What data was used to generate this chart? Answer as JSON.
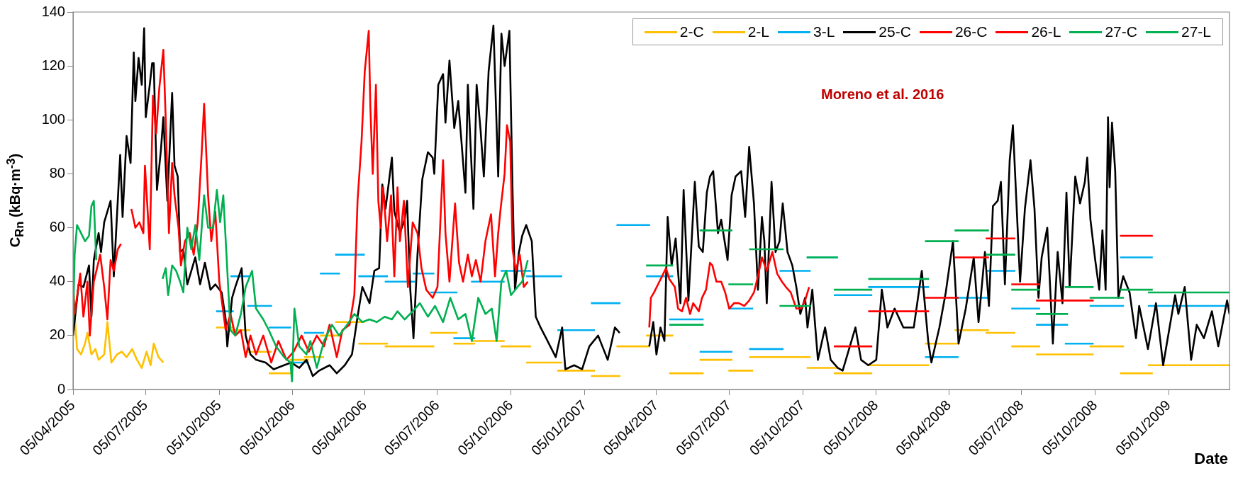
{
  "chart_data": {
    "type": "line",
    "xlabel": "Date",
    "ylabel": "C$_{Rn}$ (kBq·m$^{-3}$)",
    "annotations": [
      "Moreno et al. 2016"
    ],
    "legend": "top right",
    "xlim": [
      "2005-04-05",
      "2009-03-22"
    ],
    "xticks": [
      {
        "value": "2005-04-05",
        "label": "05/04/2005"
      },
      {
        "value": "2005-07-05",
        "label": "05/07/2005"
      },
      {
        "value": "2005-10-05",
        "label": "05/10/2005"
      },
      {
        "value": "2006-01-05",
        "label": "05/01/2006"
      },
      {
        "value": "2006-04-05",
        "label": "05/04/2006"
      },
      {
        "value": "2006-07-05",
        "label": "05/07/2006"
      },
      {
        "value": "2006-10-05",
        "label": "05/10/2006"
      },
      {
        "value": "2007-01-05",
        "label": "05/01/2007"
      },
      {
        "value": "2007-04-05",
        "label": "05/04/2007"
      },
      {
        "value": "2007-07-05",
        "label": "05/07/2007"
      },
      {
        "value": "2007-10-05",
        "label": "05/10/2007"
      },
      {
        "value": "2008-01-05",
        "label": "05/01/2008"
      },
      {
        "value": "2008-04-05",
        "label": "05/04/2008"
      },
      {
        "value": "2008-07-05",
        "label": "05/07/2008"
      },
      {
        "value": "2008-10-05",
        "label": "05/10/2008"
      },
      {
        "value": "2009-01-05",
        "label": "05/01/2009"
      }
    ],
    "ylim": [
      0,
      140
    ],
    "yticks": [
      0,
      20,
      40,
      60,
      80,
      100,
      120,
      140
    ],
    "series": [
      {
        "name": "2-C",
        "color": "#ffc000",
        "x": [
          "2005-04-05",
          "2005-04-07",
          "2005-04-10",
          "2005-04-15",
          "2005-04-20",
          "2005-04-23",
          "2005-04-28",
          "2005-05-03",
          "2005-05-07",
          "2005-05-14",
          "2005-05-18",
          "2005-05-23",
          "2005-05-30",
          "2005-06-05",
          "2005-06-11",
          "2005-06-18",
          "2005-06-24",
          "2005-06-30",
          "2005-07-06",
          "2005-07-11",
          "2005-07-15",
          "2005-07-21",
          "2005-07-27"
        ],
        "values": [
          18,
          28,
          15,
          13,
          17,
          21,
          13,
          15,
          11,
          13,
          25,
          10,
          13,
          14,
          12,
          15,
          11,
          8,
          14,
          9,
          17,
          12,
          10
        ]
      },
      {
        "name": "2-L",
        "color": "#ffc000",
        "x": [
          "2005-10-01",
          "2005-10-23",
          null,
          "2005-10-19",
          "2005-11-13",
          null,
          "2005-11-09",
          "2005-12-10",
          null,
          "2005-12-06",
          "2006-01-03",
          null,
          "2006-01-01",
          "2006-01-25",
          null,
          "2006-01-19",
          "2006-02-13",
          null,
          "2006-02-08",
          "2006-03-05",
          null,
          "2006-02-27",
          "2006-04-05",
          null,
          "2006-03-28",
          "2006-05-04",
          null,
          "2006-04-30",
          "2006-06-07",
          null,
          "2006-06-04",
          "2006-07-01",
          null,
          "2006-06-26",
          "2006-07-30",
          null,
          "2006-07-25",
          "2006-08-21",
          null,
          "2006-08-16",
          "2006-09-27",
          null,
          "2006-09-22",
          "2006-10-30",
          null,
          "2006-10-24",
          "2006-12-08",
          null,
          "2006-12-02",
          "2007-01-18",
          null,
          "2007-01-13",
          "2007-02-19",
          null,
          "2007-02-14",
          "2007-03-28",
          null,
          "2007-03-23",
          "2007-04-26",
          null,
          "2007-04-21",
          "2007-06-03",
          null,
          "2007-05-29",
          "2007-07-09",
          null,
          "2007-07-04",
          "2007-08-04",
          null,
          "2007-07-30",
          "2007-09-11",
          null,
          "2007-09-06",
          "2007-10-15",
          null,
          "2007-10-10",
          "2007-11-18",
          null,
          "2007-11-13",
          "2007-12-31",
          null,
          "2007-12-26",
          "2008-03-11",
          null,
          "2008-03-06",
          "2008-04-17",
          null,
          "2008-04-12",
          "2008-05-25",
          null,
          "2008-05-21",
          "2008-06-27",
          null,
          "2008-06-22",
          "2008-07-28",
          null,
          "2008-07-23",
          "2008-10-03",
          null,
          "2008-09-28",
          "2008-11-10",
          null,
          "2008-11-05",
          "2008-12-16",
          null,
          "2008-12-10",
          "2009-03-22"
        ],
        "values": [
          23,
          23,
          null,
          22,
          22,
          null,
          14,
          14,
          null,
          6,
          6,
          null,
          11,
          11,
          null,
          12,
          12,
          null,
          20,
          20,
          null,
          25,
          25,
          null,
          17,
          17,
          null,
          16,
          16,
          null,
          16,
          16,
          null,
          21,
          21,
          null,
          17,
          17,
          null,
          18,
          18,
          null,
          16,
          16,
          null,
          10,
          10,
          null,
          7,
          7,
          null,
          5,
          5,
          null,
          16,
          16,
          null,
          20,
          20,
          null,
          6,
          6,
          null,
          11,
          11,
          null,
          7,
          7,
          null,
          12,
          12,
          null,
          12,
          12,
          null,
          8,
          8,
          null,
          6,
          6,
          null,
          9,
          9,
          null,
          17,
          17,
          null,
          22,
          22,
          null,
          21,
          21,
          null,
          16,
          16,
          null,
          13,
          13,
          null,
          16,
          16,
          null,
          6,
          6,
          null,
          9,
          9
        ]
      },
      {
        "name": "3-L",
        "color": "#00b0f0",
        "x": [
          "2005-10-01",
          "2005-10-23",
          null,
          "2005-10-19",
          "2005-11-13",
          null,
          "2005-11-09",
          "2005-12-10",
          null,
          "2005-12-06",
          "2006-01-03",
          null,
          "2006-01-01",
          "2006-01-25",
          null,
          "2006-01-19",
          "2006-02-13",
          null,
          "2006-02-08",
          "2006-03-05",
          null,
          "2006-02-27",
          "2006-04-05",
          null,
          "2006-03-28",
          "2006-05-04",
          null,
          "2006-04-30",
          "2006-06-07",
          null,
          "2006-06-04",
          "2006-07-01",
          null,
          "2006-06-26",
          "2006-07-30",
          null,
          "2006-07-25",
          "2006-08-21",
          null,
          "2006-08-16",
          "2006-09-27",
          null,
          "2006-09-22",
          "2006-10-30",
          null,
          "2006-10-24",
          "2006-12-08",
          null,
          "2006-12-02",
          "2007-01-18",
          null,
          "2007-01-13",
          "2007-02-19",
          null,
          "2007-02-14",
          "2007-03-28",
          null,
          "2007-03-23",
          "2007-04-26",
          null,
          "2007-04-21",
          "2007-06-03",
          null,
          "2007-05-29",
          "2007-07-09",
          null,
          "2007-07-04",
          "2007-08-04",
          null,
          "2007-07-30",
          "2007-09-11",
          null,
          "2007-09-06",
          "2007-10-15",
          null,
          "2007-10-10",
          "2007-11-18",
          null,
          "2007-11-13",
          "2007-12-31",
          null,
          "2007-12-26",
          "2008-03-11",
          null,
          "2008-03-06",
          "2008-04-17",
          null,
          "2008-04-12",
          "2008-05-25",
          null,
          "2008-05-21",
          "2008-06-27",
          null,
          "2008-06-22",
          "2008-07-28",
          null,
          "2008-07-23",
          "2008-09-01",
          null,
          "2008-08-28",
          "2008-10-03",
          null,
          "2008-09-28",
          "2008-11-10",
          null,
          "2008-11-05",
          "2008-12-16",
          null,
          "2008-12-10",
          "2009-03-22"
        ],
        "values": [
          29,
          29,
          null,
          42,
          42,
          null,
          31,
          31,
          null,
          23,
          23,
          null,
          10,
          10,
          null,
          21,
          21,
          null,
          43,
          43,
          null,
          50,
          50,
          null,
          42,
          42,
          null,
          40,
          40,
          null,
          43,
          43,
          null,
          36,
          36,
          null,
          19,
          19,
          null,
          40,
          40,
          null,
          44,
          44,
          null,
          42,
          42,
          null,
          22,
          22,
          null,
          32,
          32,
          null,
          61,
          61,
          null,
          42,
          42,
          null,
          26,
          26,
          null,
          14,
          14,
          null,
          30,
          30,
          null,
          15,
          15,
          null,
          44,
          44,
          null,
          49,
          49,
          null,
          35,
          35,
          null,
          38,
          38,
          null,
          12,
          12,
          null,
          34,
          34,
          null,
          44,
          44,
          null,
          30,
          30,
          null,
          24,
          24,
          null,
          17,
          17,
          null,
          31,
          31,
          null,
          49,
          49,
          null,
          31,
          31
        ]
      },
      {
        "name": "25-C",
        "color": "#000000",
        "x": [
          "2005-04-05",
          "2005-04-12",
          "2005-04-18",
          "2005-04-25",
          "2005-04-28",
          "2005-05-01",
          "2005-05-07",
          "2005-05-10",
          "2005-05-14",
          "2005-05-22",
          "2005-05-26",
          "2005-06-03",
          "2005-06-06",
          "2005-06-11",
          "2005-06-16",
          "2005-06-20",
          "2005-06-22",
          "2005-06-26",
          "2005-06-30",
          "2005-07-03",
          "2005-07-05",
          "2005-07-10",
          "2005-07-13",
          "2005-07-15",
          "2005-07-19",
          "2005-07-24",
          "2005-07-27",
          "2005-08-01",
          "2005-08-07",
          "2005-08-10",
          "2005-08-14",
          "2005-08-17",
          "2005-08-21",
          "2005-08-26",
          "2005-09-05",
          "2005-09-11",
          "2005-09-17",
          "2005-09-24",
          "2005-09-30",
          "2005-10-08",
          "2005-10-13",
          "2005-10-15",
          "2005-10-21",
          "2005-10-25",
          "2005-11-02",
          "2005-11-07",
          "2005-11-13",
          "2005-11-20",
          "2005-12-02",
          "2005-12-12",
          "2005-12-25",
          "2006-01-03",
          "2006-01-13",
          "2006-01-22",
          "2006-01-30",
          "2006-02-07",
          "2006-02-20",
          "2006-03-01",
          "2006-03-11",
          "2006-03-20",
          "2006-03-27",
          "2006-04-02",
          "2006-04-11",
          "2006-04-17",
          "2006-04-23",
          "2006-04-27",
          "2006-05-01",
          "2006-05-09",
          "2006-05-12",
          "2006-05-19",
          "2006-05-25",
          "2006-05-28",
          "2006-06-01",
          "2006-06-05",
          "2006-06-10",
          "2006-06-16",
          "2006-06-23",
          "2006-06-29",
          "2006-07-01",
          "2006-07-06",
          "2006-07-12",
          "2006-07-15",
          "2006-07-20",
          "2006-07-26",
          "2006-07-31",
          "2006-08-04",
          "2006-08-09",
          "2006-08-12",
          "2006-08-19",
          "2006-08-23",
          "2006-08-28",
          "2006-09-01",
          "2006-09-07",
          "2006-09-13",
          "2006-09-19",
          "2006-09-23",
          "2006-09-27",
          "2006-10-03",
          "2006-10-07",
          "2006-10-10",
          "2006-10-15",
          "2006-10-19",
          "2006-10-24",
          "2006-10-31",
          "2006-11-05",
          "2006-11-11",
          "2006-11-18",
          "2006-11-30",
          "2006-12-08",
          "2006-12-12",
          "2006-12-23",
          "2007-01-02",
          "2007-01-11",
          "2007-01-22",
          "2007-02-03",
          "2007-02-12",
          "2007-02-18",
          "2007-03-10",
          "2007-03-27",
          "2007-04-01",
          "2007-04-05",
          "2007-04-10",
          "2007-04-15",
          "2007-04-19",
          "2007-04-24",
          "2007-04-29",
          "2007-05-05",
          "2007-05-09",
          "2007-05-15",
          "2007-05-23",
          "2007-05-28",
          "2007-06-02",
          "2007-06-07",
          "2007-06-11",
          "2007-06-15",
          "2007-06-21",
          "2007-06-25",
          "2007-07-03",
          "2007-07-08",
          "2007-07-13",
          "2007-07-20",
          "2007-07-25",
          "2007-07-30",
          "2007-08-05",
          "2007-08-10",
          "2007-08-15",
          "2007-08-18",
          "2007-08-21",
          "2007-08-27",
          "2007-09-01",
          "2007-09-06",
          "2007-09-10",
          "2007-09-16",
          "2007-09-22",
          "2007-09-27",
          "2007-10-02",
          "2007-10-08",
          "2007-10-11",
          "2007-10-17",
          "2007-10-24",
          "2007-11-02",
          "2007-11-09",
          "2007-11-18",
          "2007-11-24",
          "2007-12-02",
          "2007-12-10",
          "2007-12-17",
          "2007-12-26",
          "2008-01-05",
          "2008-01-12",
          "2008-01-19",
          "2008-01-28",
          "2008-02-08",
          "2008-02-21",
          "2008-03-02",
          "2008-03-10",
          "2008-03-14",
          "2008-03-24",
          "2008-04-01",
          "2008-04-10",
          "2008-04-17",
          "2008-04-26",
          "2008-05-06",
          "2008-05-12",
          "2008-05-20",
          "2008-05-25",
          "2008-05-30",
          "2008-06-05",
          "2008-06-09",
          "2008-06-14",
          "2008-06-20",
          "2008-06-24",
          "2008-06-28",
          "2008-07-03",
          "2008-07-09",
          "2008-07-16",
          "2008-07-21",
          "2008-07-26",
          "2008-07-30",
          "2008-08-06",
          "2008-08-13",
          "2008-08-19",
          "2008-08-25",
          "2008-08-30",
          "2008-09-03",
          "2008-09-10",
          "2008-09-16",
          "2008-09-22",
          "2008-09-25",
          "2008-09-29",
          "2008-10-05",
          "2008-10-10",
          "2008-10-14",
          "2008-10-18",
          "2008-10-21",
          "2008-10-23",
          "2008-10-26",
          "2008-10-30",
          "2008-11-03",
          "2008-11-09",
          "2008-11-17",
          "2008-11-25",
          "2008-11-29",
          "2008-12-10",
          "2008-12-20",
          "2008-12-29",
          "2009-01-06",
          "2009-01-13",
          "2009-01-17",
          "2009-01-25",
          "2009-02-02",
          "2009-02-09",
          "2009-02-18",
          "2009-02-28",
          "2009-03-08",
          "2009-03-19",
          "2009-03-22"
        ],
        "values": [
          20,
          39,
          38,
          46,
          27,
          48,
          58,
          51,
          62,
          70,
          42,
          87,
          64,
          94,
          84,
          125,
          107,
          123,
          113,
          134,
          101,
          113,
          121,
          121,
          74,
          89,
          101,
          70,
          110,
          83,
          79,
          51,
          52,
          39,
          49,
          39,
          47,
          37,
          39,
          36,
          26,
          16,
          34,
          38,
          45,
          20,
          13,
          11,
          10,
          7.5,
          9,
          10,
          8,
          11,
          5,
          7,
          9,
          6,
          9,
          13,
          27,
          38,
          32,
          44,
          45,
          76,
          67,
          86,
          66,
          58,
          63,
          70,
          37,
          19,
          50,
          78,
          88,
          86,
          80,
          113,
          117,
          99,
          122,
          97,
          107,
          92,
          73,
          113,
          67,
          113,
          96,
          79,
          118,
          135,
          79,
          132,
          120,
          133,
          73,
          37,
          51,
          57,
          61,
          55,
          27,
          23,
          19,
          12,
          23,
          7.5,
          9,
          7.5,
          16,
          20,
          11,
          23,
          21,
          null,
          16,
          25,
          13,
          23,
          18,
          64,
          46,
          56,
          32,
          74,
          33,
          77,
          53,
          51,
          73,
          79,
          81,
          58,
          63,
          48,
          72,
          79,
          81,
          64,
          90,
          69,
          37,
          64,
          55,
          32,
          77,
          51,
          55,
          69,
          51,
          46,
          38,
          28,
          34,
          23,
          37,
          11,
          23,
          11,
          8,
          7,
          15,
          23,
          11,
          9,
          11,
          37,
          23,
          30,
          23,
          23,
          44,
          18,
          10,
          23,
          36,
          55,
          17,
          30,
          49,
          25,
          51,
          31,
          68,
          70,
          77,
          39,
          85,
          98,
          72,
          40,
          67,
          85,
          67,
          34,
          49,
          60,
          17,
          51,
          32,
          73,
          38,
          79,
          69,
          77,
          86,
          63,
          48,
          37,
          59,
          37,
          101,
          75,
          99,
          81,
          34,
          42,
          36,
          19,
          31,
          15,
          32,
          9,
          23,
          35,
          28,
          38,
          11,
          24,
          19,
          29,
          16,
          33,
          28
        ]
      },
      {
        "name": "26-C",
        "color": "#ff0000",
        "x": [
          "2005-04-05",
          "2005-04-07",
          "2005-04-14",
          "2005-04-18",
          "2005-04-23",
          "2005-04-26",
          "2005-05-01",
          "2005-05-09",
          "2005-05-14",
          "2005-05-18",
          "2005-05-22",
          "2005-05-26",
          "2005-05-31",
          "2005-06-04",
          "2005-06-10",
          "2005-06-17",
          "2005-06-22",
          "2005-06-27",
          "2005-07-02",
          "2005-07-04",
          "2005-07-07",
          "2005-07-10",
          "2005-07-14",
          "2005-07-18",
          "2005-07-22",
          "2005-07-27",
          "2005-07-30",
          "2005-08-03",
          "2005-08-07",
          "2005-08-10",
          "2005-08-15",
          "2005-08-18",
          "2005-08-23",
          "2005-08-29",
          "2005-09-03",
          "2005-09-08",
          "2005-09-13",
          "2005-09-16",
          "2005-09-21",
          "2005-09-25",
          "2005-09-30",
          "2005-10-05",
          "2005-10-13",
          "2005-10-19",
          "2005-10-25",
          "2005-11-01",
          "2005-11-07",
          "2005-11-13",
          "2005-11-20",
          "2005-11-29",
          "2005-12-09",
          "2005-12-18",
          "2005-12-28",
          "2006-01-06",
          "2006-01-16",
          "2006-01-25",
          "2006-02-04",
          "2006-02-13",
          "2006-02-20",
          "2006-03-01",
          "2006-03-08",
          "2006-03-17",
          "2006-03-23",
          "2006-03-27",
          "2006-04-01",
          "2006-04-05",
          "2006-04-10",
          "2006-04-12",
          "2006-04-15",
          "2006-04-19",
          "2006-04-22",
          "2006-04-25",
          "2006-04-28",
          "2006-05-03",
          "2006-05-08",
          "2006-05-12",
          "2006-05-16",
          "2006-05-19",
          "2006-05-24",
          "2006-05-29",
          "2006-06-04",
          "2006-06-10",
          "2006-06-15",
          "2006-06-21",
          "2006-06-29",
          "2006-07-05",
          "2006-07-12",
          "2006-07-15",
          "2006-07-20",
          "2006-07-27",
          "2006-08-01",
          "2006-08-06",
          "2006-08-12",
          "2006-08-17",
          "2006-08-22",
          "2006-08-28",
          "2006-09-03",
          "2006-09-10",
          "2006-09-15",
          "2006-09-19",
          "2006-09-22",
          "2006-09-27",
          "2006-09-30",
          "2006-10-04",
          "2006-10-07",
          "2006-10-11",
          "2006-10-16",
          "2006-10-21",
          "2006-10-26",
          "2007-01-01",
          "2007-03-27",
          "2007-03-29",
          "2007-04-02",
          "2007-04-07",
          "2007-04-12",
          "2007-04-17",
          "2007-04-21",
          "2007-04-28",
          "2007-05-02",
          "2007-05-07",
          "2007-05-12",
          "2007-05-17",
          "2007-05-21",
          "2007-05-28",
          "2007-06-01",
          "2007-06-06",
          "2007-06-11",
          "2007-06-14",
          "2007-06-19",
          "2007-06-25",
          "2007-06-30",
          "2007-07-05",
          "2007-07-11",
          "2007-07-17",
          "2007-07-24",
          "2007-07-30",
          "2007-08-05",
          "2007-08-10",
          "2007-08-15",
          "2007-08-21",
          "2007-08-28",
          "2007-09-03",
          "2007-09-09",
          "2007-09-14",
          "2007-09-20",
          "2007-09-27",
          "2007-10-03",
          "2007-10-08",
          "2007-10-13"
        ],
        "values": [
          40,
          28,
          43,
          27,
          40,
          20,
          40,
          50,
          38,
          26,
          48,
          44,
          52,
          54,
          null,
          67,
          60,
          62,
          58,
          83,
          68,
          52,
          109,
          95,
          112,
          126,
          100,
          58,
          84,
          72,
          60,
          46,
          55,
          58,
          50,
          62,
          88,
          106,
          72,
          55,
          66,
          40,
          22,
          28,
          20,
          22,
          12,
          20,
          13,
          20,
          10,
          18,
          11,
          14,
          20,
          14,
          20,
          16,
          24,
          12,
          22,
          24,
          35,
          70,
          92,
          118,
          133,
          105,
          80,
          113,
          70,
          60,
          75,
          55,
          72,
          42,
          75,
          55,
          70,
          38,
          62,
          58,
          45,
          37,
          34,
          38,
          85,
          58,
          40,
          69,
          47,
          40,
          50,
          42,
          48,
          40,
          55,
          65,
          42,
          58,
          67,
          80,
          98,
          92,
          52,
          44,
          50,
          38,
          40,
          null,
          23,
          34,
          36,
          39,
          42,
          45,
          41,
          38,
          30,
          29,
          34,
          28,
          32,
          29,
          34,
          37,
          47,
          46,
          40,
          40,
          36,
          30,
          32,
          32,
          31,
          33,
          36,
          42,
          49,
          44,
          51,
          43,
          40,
          38,
          36,
          30,
          30,
          33,
          38
        ]
      },
      {
        "name": "26-L",
        "color": "#ff0000",
        "x": [
          "2007-11-13",
          "2007-12-31",
          null,
          "2007-12-26",
          "2008-03-11",
          null,
          "2008-03-06",
          "2008-04-17",
          null,
          "2008-04-12",
          "2008-05-25",
          null,
          "2008-05-21",
          "2008-06-27",
          null,
          "2008-06-22",
          "2008-07-28",
          null,
          "2008-07-23",
          "2008-10-03",
          null,
          "2008-11-05",
          "2008-12-16"
        ],
        "values": [
          16,
          16,
          null,
          29,
          29,
          null,
          34,
          34,
          null,
          49,
          49,
          null,
          56,
          56,
          null,
          39,
          39,
          null,
          33,
          33,
          null,
          57,
          57
        ]
      },
      {
        "name": "27-C",
        "color": "#00b050",
        "x": [
          "2005-04-05",
          "2005-04-07",
          "2005-04-10",
          "2005-04-15",
          "2005-04-20",
          "2005-04-25",
          "2005-04-28",
          "2005-05-01",
          "2005-05-04",
          "2005-06-15",
          "2005-07-26",
          "2005-07-30",
          "2005-08-02",
          "2005-08-07",
          "2005-08-12",
          "2005-08-17",
          "2005-08-21",
          "2005-08-26",
          "2005-08-31",
          "2005-09-05",
          "2005-09-10",
          "2005-09-16",
          "2005-09-21",
          "2005-09-27",
          "2005-10-02",
          "2005-10-06",
          "2005-10-10",
          "2005-10-14",
          "2005-10-19",
          "2005-10-25",
          "2005-11-01",
          "2005-11-07",
          "2005-11-15",
          "2005-11-20",
          "2005-11-29",
          "2005-12-06",
          "2005-12-15",
          "2005-12-25",
          "2006-01-02",
          "2006-01-04",
          "2006-01-07",
          "2006-01-13",
          "2006-01-22",
          "2006-01-27",
          "2006-02-04",
          "2006-02-13",
          "2006-02-23",
          "2006-03-04",
          "2006-03-14",
          "2006-03-23",
          "2006-04-02",
          "2006-04-11",
          "2006-04-20",
          "2006-04-30",
          "2006-05-09",
          "2006-05-16",
          "2006-05-25",
          "2006-06-04",
          "2006-06-13",
          "2006-06-23",
          "2006-07-02",
          "2006-07-12",
          "2006-07-21",
          "2006-07-31",
          "2006-08-09",
          "2006-08-17",
          "2006-08-25",
          "2006-09-03",
          "2006-09-11",
          "2006-09-17",
          "2006-09-23",
          "2006-09-29",
          "2006-10-05",
          "2006-10-13",
          "2006-10-19",
          "2006-10-26"
        ],
        "values": [
          25,
          50,
          61,
          58,
          55,
          57,
          68,
          70,
          48,
          null,
          41,
          45,
          35,
          46,
          44,
          40,
          36,
          60,
          52,
          61,
          48,
          72,
          60,
          60,
          74,
          62,
          72,
          50,
          22,
          20,
          28,
          38,
          44,
          30,
          26,
          22,
          16,
          12,
          10,
          3,
          30,
          16,
          13,
          18,
          8,
          18,
          24,
          20,
          24,
          28,
          25,
          26,
          25,
          27,
          26,
          29,
          26,
          29,
          32,
          27,
          31,
          25,
          34,
          26,
          28,
          18,
          34,
          28,
          30,
          18,
          40,
          44,
          35,
          38,
          40,
          48
        ]
      },
      {
        "name": "27-L",
        "color": "#00b050",
        "x": [
          "2007-03-23",
          "2007-04-26",
          null,
          "2007-04-21",
          "2007-06-03",
          null,
          "2007-05-29",
          "2007-07-09",
          null,
          "2007-07-04",
          "2007-08-04",
          null,
          "2007-07-30",
          "2007-09-11",
          null,
          "2007-09-06",
          "2007-10-15",
          null,
          "2007-10-10",
          "2007-11-18",
          null,
          "2007-11-13",
          "2007-12-31",
          null,
          "2007-12-26",
          "2008-03-11",
          null,
          "2008-03-06",
          "2008-04-17",
          null,
          "2008-04-12",
          "2008-05-25",
          null,
          "2008-05-21",
          "2008-06-27",
          null,
          "2008-06-22",
          "2008-07-28",
          null,
          "2008-07-23",
          "2008-09-01",
          null,
          "2008-08-28",
          "2008-10-03",
          null,
          "2008-09-28",
          "2008-11-10",
          null,
          "2008-11-05",
          "2008-12-16",
          null,
          "2008-12-10",
          "2009-03-22"
        ],
        "values": [
          46,
          46,
          null,
          24,
          24,
          null,
          59,
          59,
          null,
          39,
          39,
          null,
          52,
          52,
          null,
          31,
          31,
          null,
          49,
          49,
          null,
          37,
          37,
          null,
          41,
          41,
          null,
          55,
          55,
          null,
          59,
          59,
          null,
          50,
          50,
          null,
          37,
          37,
          null,
          28,
          28,
          null,
          38,
          38,
          null,
          34,
          34,
          null,
          37,
          37,
          null,
          36,
          36
        ]
      }
    ]
  }
}
